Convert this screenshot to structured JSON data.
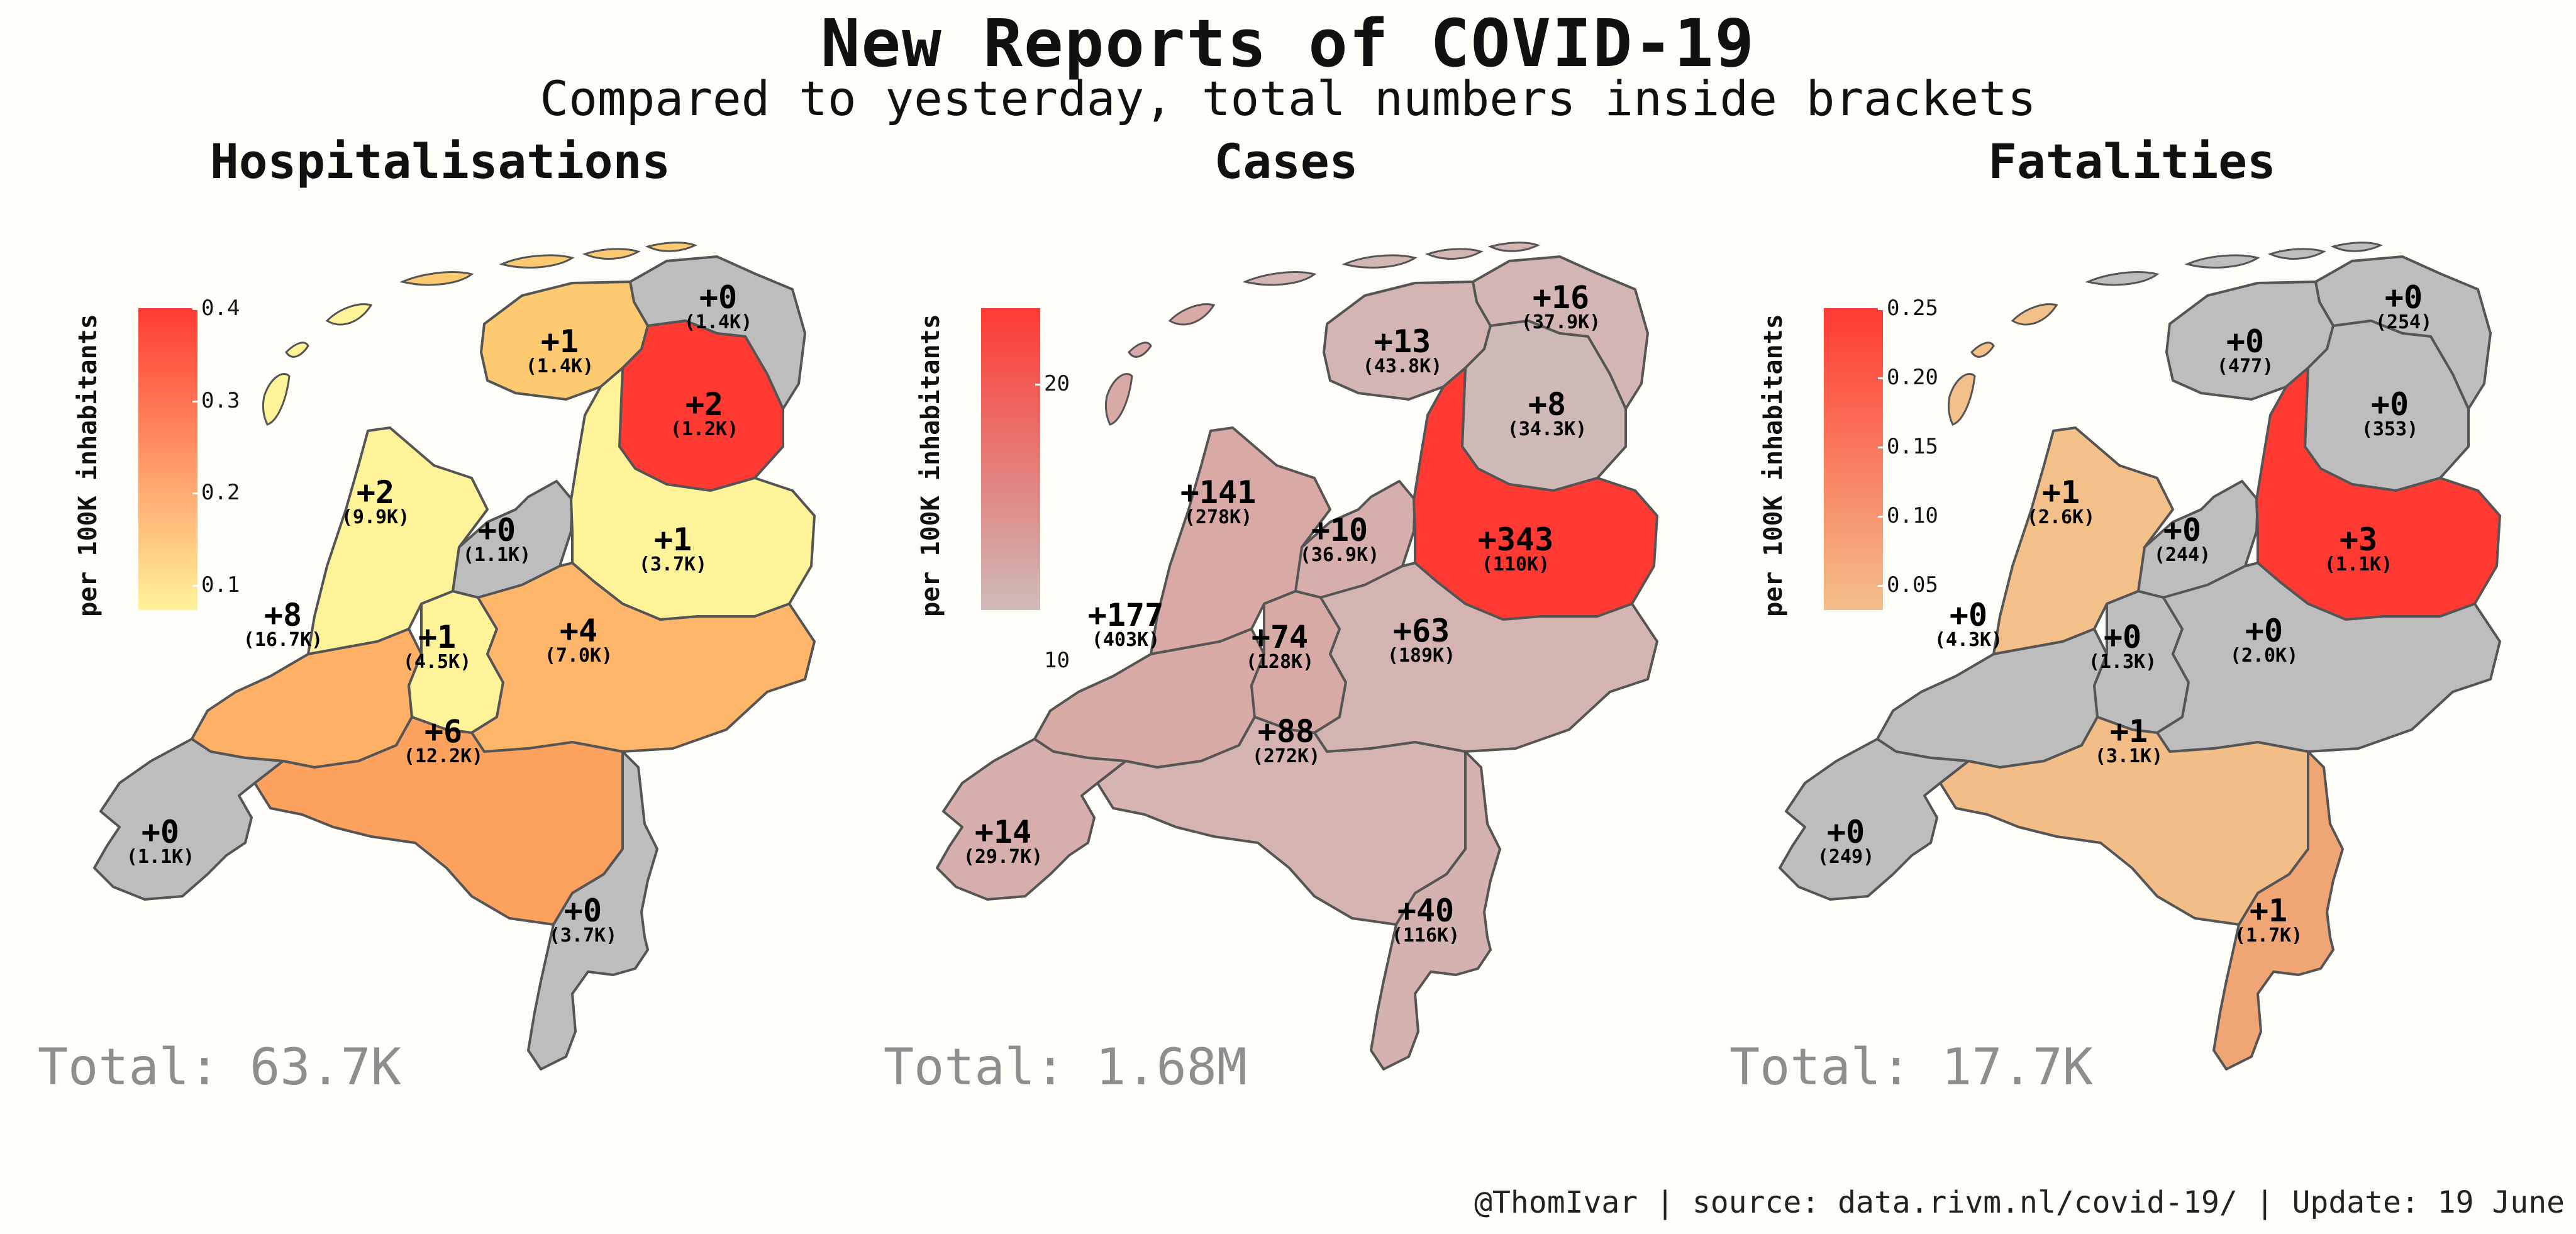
{
  "title": "New Reports of COVID-19",
  "subtitle": "Compared to yesterday, total numbers inside brackets",
  "footer": "@ThomIvar | source: data.rivm.nl/covid-19/ | Update: 19 June",
  "legend_title": "per 100K inhabitants",
  "colors": {
    "background": "#fefdf7",
    "nodata": "#bdbdbd",
    "total_text": "#8e8e8e"
  },
  "panels": [
    {
      "title": "Hospitalisations",
      "total": "Total: 63.7K",
      "scale": {
        "low": "#fff39a",
        "high": "#ff3a33",
        "ticks": [
          "0.4",
          "0.3",
          "0.2",
          "0.1"
        ]
      },
      "regions": [
        {
          "name": "groningen",
          "value": "+0",
          "total": "(1.4K)",
          "fill": "#bdbdbd"
        },
        {
          "name": "friesland",
          "value": "+1",
          "total": "(1.4K)",
          "fill": "#fdca72"
        },
        {
          "name": "drenthe",
          "value": "+2",
          "total": "(1.2K)",
          "fill": "#ff3a33"
        },
        {
          "name": "noord-holland",
          "value": "+2",
          "total": "(9.9K)",
          "fill": "#fff39a"
        },
        {
          "name": "flevoland",
          "value": "+0",
          "total": "(1.1K)",
          "fill": "#bdbdbd"
        },
        {
          "name": "overijssel",
          "value": "+1",
          "total": "(3.7K)",
          "fill": "#fff39a"
        },
        {
          "name": "zuid-holland",
          "value": "+8",
          "total": "(16.7K)",
          "fill": "#fdb066"
        },
        {
          "name": "utrecht",
          "value": "+1",
          "total": "(4.5K)",
          "fill": "#fff39a"
        },
        {
          "name": "gelderland",
          "value": "+4",
          "total": "(7.0K)",
          "fill": "#fdb66a"
        },
        {
          "name": "noord-brabant",
          "value": "+6",
          "total": "(12.2K)",
          "fill": "#fca15e"
        },
        {
          "name": "zeeland",
          "value": "+0",
          "total": "(1.1K)",
          "fill": "#bdbdbd"
        },
        {
          "name": "limburg",
          "value": "+0",
          "total": "(3.7K)",
          "fill": "#bdbdbd"
        }
      ]
    },
    {
      "title": "Cases",
      "total": "Total: 1.68M",
      "scale": {
        "low": "#cdbbb9",
        "high": "#ff3a33",
        "ticks": [
          "20",
          "10"
        ]
      },
      "regions": [
        {
          "name": "groningen",
          "value": "+16",
          "total": "(37.9K)",
          "fill": "#d3b5b3"
        },
        {
          "name": "friesland",
          "value": "+13",
          "total": "(43.8K)",
          "fill": "#d3b5b3"
        },
        {
          "name": "drenthe",
          "value": "+8",
          "total": "(34.3K)",
          "fill": "#cfb9b7"
        },
        {
          "name": "noord-holland",
          "value": "+141",
          "total": "(278K)",
          "fill": "#d9a9a5"
        },
        {
          "name": "flevoland",
          "value": "+10",
          "total": "(36.9K)",
          "fill": "#d6afac"
        },
        {
          "name": "overijssel",
          "value": "+343",
          "total": "(110K)",
          "fill": "#ff3a33"
        },
        {
          "name": "zuid-holland",
          "value": "+177",
          "total": "(403K)",
          "fill": "#d8aaa6"
        },
        {
          "name": "utrecht",
          "value": "+74",
          "total": "(128K)",
          "fill": "#d8aaa6"
        },
        {
          "name": "gelderland",
          "value": "+63",
          "total": "(189K)",
          "fill": "#d3b4b1"
        },
        {
          "name": "noord-brabant",
          "value": "+88",
          "total": "(272K)",
          "fill": "#d4b3b0"
        },
        {
          "name": "zeeland",
          "value": "+14",
          "total": "(29.7K)",
          "fill": "#d6afac"
        },
        {
          "name": "limburg",
          "value": "+40",
          "total": "(116K)",
          "fill": "#d4b2af"
        }
      ]
    },
    {
      "title": "Fatalities",
      "total": "Total: 17.7K",
      "scale": {
        "low": "#f3c08a",
        "high": "#ff3a33",
        "ticks": [
          "0.25",
          "0.20",
          "0.15",
          "0.10",
          "0.05"
        ]
      },
      "regions": [
        {
          "name": "groningen",
          "value": "+0",
          "total": "(254)",
          "fill": "#bdbdbd"
        },
        {
          "name": "friesland",
          "value": "+0",
          "total": "(477)",
          "fill": "#bdbdbd"
        },
        {
          "name": "drenthe",
          "value": "+0",
          "total": "(353)",
          "fill": "#bdbdbd"
        },
        {
          "name": "noord-holland",
          "value": "+1",
          "total": "(2.6K)",
          "fill": "#f3c08a"
        },
        {
          "name": "flevoland",
          "value": "+0",
          "total": "(244)",
          "fill": "#bdbdbd"
        },
        {
          "name": "overijssel",
          "value": "+3",
          "total": "(1.1K)",
          "fill": "#ff3a33"
        },
        {
          "name": "zuid-holland",
          "value": "+0",
          "total": "(4.3K)",
          "fill": "#bdbdbd"
        },
        {
          "name": "utrecht",
          "value": "+0",
          "total": "(1.3K)",
          "fill": "#bdbdbd"
        },
        {
          "name": "gelderland",
          "value": "+0",
          "total": "(2.0K)",
          "fill": "#bdbdbd"
        },
        {
          "name": "noord-brabant",
          "value": "+1",
          "total": "(3.1K)",
          "fill": "#f2bd86"
        },
        {
          "name": "zeeland",
          "value": "+0",
          "total": "(249)",
          "fill": "#bdbdbd"
        },
        {
          "name": "limburg",
          "value": "+1",
          "total": "(1.7K)",
          "fill": "#f0a574"
        }
      ]
    }
  ]
}
